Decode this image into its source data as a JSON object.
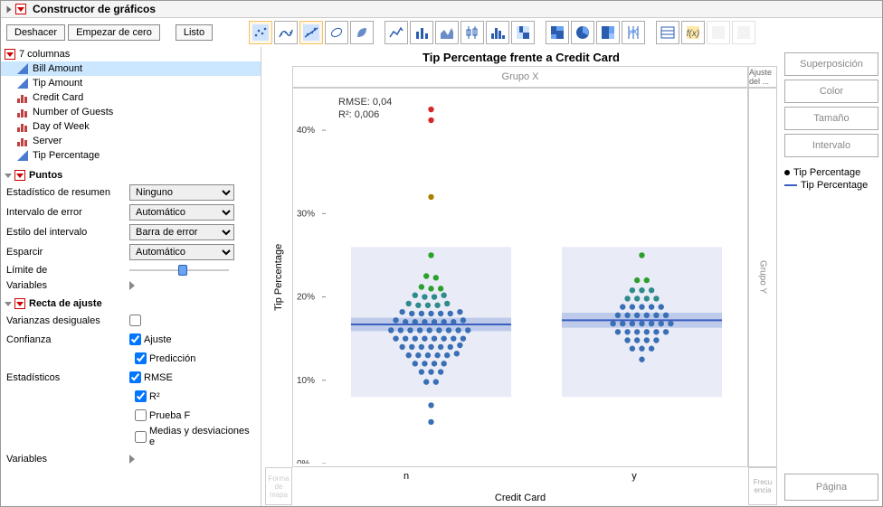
{
  "header": {
    "title": "Constructor de gráficos"
  },
  "toolbar": {
    "undo": "Deshacer",
    "redo": "Empezar de cero",
    "done": "Listo"
  },
  "columns": {
    "count_label": "7 columnas",
    "items": [
      {
        "name": "Bill Amount",
        "type": "continuous",
        "selected": true
      },
      {
        "name": "Tip Amount",
        "type": "continuous",
        "selected": false
      },
      {
        "name": "Credit Card",
        "type": "nominal",
        "selected": false
      },
      {
        "name": "Number of Guests",
        "type": "nominal",
        "selected": false
      },
      {
        "name": "Day of Week",
        "type": "nominal",
        "selected": false
      },
      {
        "name": "Server",
        "type": "nominal",
        "selected": false
      },
      {
        "name": "Tip Percentage",
        "type": "continuous",
        "selected": false
      }
    ]
  },
  "puntos": {
    "title": "Puntos",
    "summary_label": "Estadístico de resumen",
    "summary_value": "Ninguno",
    "error_interval_label": "Intervalo de error",
    "error_interval_value": "Automático",
    "interval_style_label": "Estilo del intervalo",
    "interval_style_value": "Barra de error",
    "esparcir_label": "Esparcir",
    "esparcir_value": "Automático",
    "limite_label": "Límite de",
    "variables_label": "Variables"
  },
  "recta": {
    "title": "Recta de ajuste",
    "varianzas_label": "Varianzas desiguales",
    "confianza_label": "Confianza",
    "ajuste": "Ajuste",
    "prediccion": "Predicción",
    "estadisticos_label": "Estadísticos",
    "rmse": "RMSE",
    "r2": "R²",
    "pruebaf": "Prueba F",
    "medias": "Medias y desviaciones e",
    "variables_label": "Variables",
    "checks": {
      "varianzas": false,
      "ajuste": true,
      "prediccion": true,
      "rmse": true,
      "r2": true,
      "pruebaf": false,
      "medias": false
    }
  },
  "chart": {
    "title": "Tip Percentage frente a Credit Card",
    "grupo_x": "Grupo X",
    "grupo_y": "Grupo Y",
    "ajuste_del": "Ajuste del ...",
    "frecuencia": "Frecu encia",
    "forma": "Forma de mapa",
    "y_label": "Tip Percentage",
    "x_label": "Credit Card",
    "x_cats": [
      "n",
      "y"
    ],
    "y_ticks": [
      0,
      10,
      20,
      30,
      40
    ],
    "y_tick_labels": [
      "0%",
      "10%",
      "20%",
      "30%",
      "40%"
    ],
    "y_range": [
      0,
      45
    ],
    "stats": {
      "rmse": "RMSE: 0,04",
      "r2": "R²: 0,006"
    },
    "box_color": "#e9ecf6",
    "fit_line_color": "#3b5fc0",
    "ci_band_color": "#b5c4e8",
    "n": {
      "fit_y": 16.7,
      "band_y": [
        15.9,
        17.5
      ],
      "points": [
        {
          "x": 0.5,
          "y": 42.5,
          "c": "#d62728"
        },
        {
          "x": 0.5,
          "y": 41.2,
          "c": "#d62728"
        },
        {
          "x": 0.5,
          "y": 32.0,
          "c": "#a88000"
        },
        {
          "x": 0.5,
          "y": 25.0,
          "c": "#2ca02c"
        },
        {
          "x": 0.47,
          "y": 22.5,
          "c": "#2ca02c"
        },
        {
          "x": 0.53,
          "y": 22.3,
          "c": "#2ca02c"
        },
        {
          "x": 0.44,
          "y": 21.2,
          "c": "#2ca02c"
        },
        {
          "x": 0.5,
          "y": 21.0,
          "c": "#2ca02c"
        },
        {
          "x": 0.56,
          "y": 21.0,
          "c": "#2ca02c"
        },
        {
          "x": 0.4,
          "y": 20.2,
          "c": "#2e8b8b"
        },
        {
          "x": 0.46,
          "y": 20.0,
          "c": "#2e8b8b"
        },
        {
          "x": 0.52,
          "y": 20.0,
          "c": "#2e8b8b"
        },
        {
          "x": 0.58,
          "y": 20.2,
          "c": "#2e8b8b"
        },
        {
          "x": 0.36,
          "y": 19.2,
          "c": "#2e8b8b"
        },
        {
          "x": 0.42,
          "y": 19.0,
          "c": "#2e8b8b"
        },
        {
          "x": 0.48,
          "y": 19.0,
          "c": "#2e8b8b"
        },
        {
          "x": 0.54,
          "y": 19.0,
          "c": "#2e8b8b"
        },
        {
          "x": 0.6,
          "y": 19.2,
          "c": "#2e8b8b"
        },
        {
          "x": 0.32,
          "y": 18.2,
          "c": "#3a6eb5"
        },
        {
          "x": 0.38,
          "y": 18.0,
          "c": "#3a6eb5"
        },
        {
          "x": 0.44,
          "y": 18.0,
          "c": "#3a6eb5"
        },
        {
          "x": 0.5,
          "y": 18.0,
          "c": "#3a6eb5"
        },
        {
          "x": 0.56,
          "y": 18.0,
          "c": "#3a6eb5"
        },
        {
          "x": 0.62,
          "y": 18.0,
          "c": "#3a6eb5"
        },
        {
          "x": 0.68,
          "y": 18.2,
          "c": "#3a6eb5"
        },
        {
          "x": 0.28,
          "y": 17.2,
          "c": "#3a6eb5"
        },
        {
          "x": 0.34,
          "y": 17.0,
          "c": "#3a6eb5"
        },
        {
          "x": 0.4,
          "y": 17.0,
          "c": "#3a6eb5"
        },
        {
          "x": 0.46,
          "y": 17.0,
          "c": "#3a6eb5"
        },
        {
          "x": 0.52,
          "y": 17.0,
          "c": "#3a6eb5"
        },
        {
          "x": 0.58,
          "y": 17.0,
          "c": "#3a6eb5"
        },
        {
          "x": 0.64,
          "y": 17.0,
          "c": "#3a6eb5"
        },
        {
          "x": 0.7,
          "y": 17.2,
          "c": "#3a6eb5"
        },
        {
          "x": 0.25,
          "y": 16.0,
          "c": "#3a6eb5"
        },
        {
          "x": 0.31,
          "y": 16.0,
          "c": "#3a6eb5"
        },
        {
          "x": 0.37,
          "y": 16.0,
          "c": "#3a6eb5"
        },
        {
          "x": 0.43,
          "y": 16.0,
          "c": "#3a6eb5"
        },
        {
          "x": 0.49,
          "y": 16.0,
          "c": "#3a6eb5"
        },
        {
          "x": 0.55,
          "y": 16.0,
          "c": "#3a6eb5"
        },
        {
          "x": 0.61,
          "y": 16.0,
          "c": "#3a6eb5"
        },
        {
          "x": 0.67,
          "y": 16.0,
          "c": "#3a6eb5"
        },
        {
          "x": 0.73,
          "y": 16.0,
          "c": "#3a6eb5"
        },
        {
          "x": 0.28,
          "y": 15.0,
          "c": "#3a6eb5"
        },
        {
          "x": 0.34,
          "y": 15.0,
          "c": "#3a6eb5"
        },
        {
          "x": 0.4,
          "y": 15.0,
          "c": "#3a6eb5"
        },
        {
          "x": 0.46,
          "y": 15.0,
          "c": "#3a6eb5"
        },
        {
          "x": 0.52,
          "y": 15.0,
          "c": "#3a6eb5"
        },
        {
          "x": 0.58,
          "y": 15.0,
          "c": "#3a6eb5"
        },
        {
          "x": 0.64,
          "y": 15.0,
          "c": "#3a6eb5"
        },
        {
          "x": 0.7,
          "y": 15.0,
          "c": "#3a6eb5"
        },
        {
          "x": 0.32,
          "y": 14.0,
          "c": "#3a6eb5"
        },
        {
          "x": 0.38,
          "y": 14.0,
          "c": "#3a6eb5"
        },
        {
          "x": 0.44,
          "y": 14.0,
          "c": "#3a6eb5"
        },
        {
          "x": 0.5,
          "y": 14.0,
          "c": "#3a6eb5"
        },
        {
          "x": 0.56,
          "y": 14.0,
          "c": "#3a6eb5"
        },
        {
          "x": 0.62,
          "y": 14.0,
          "c": "#3a6eb5"
        },
        {
          "x": 0.68,
          "y": 14.2,
          "c": "#3a6eb5"
        },
        {
          "x": 0.36,
          "y": 13.0,
          "c": "#3a6eb5"
        },
        {
          "x": 0.42,
          "y": 13.0,
          "c": "#3a6eb5"
        },
        {
          "x": 0.48,
          "y": 13.0,
          "c": "#3a6eb5"
        },
        {
          "x": 0.54,
          "y": 13.0,
          "c": "#3a6eb5"
        },
        {
          "x": 0.6,
          "y": 13.0,
          "c": "#3a6eb5"
        },
        {
          "x": 0.66,
          "y": 13.2,
          "c": "#3a6eb5"
        },
        {
          "x": 0.4,
          "y": 12.0,
          "c": "#3a6eb5"
        },
        {
          "x": 0.46,
          "y": 12.0,
          "c": "#3a6eb5"
        },
        {
          "x": 0.52,
          "y": 12.0,
          "c": "#3a6eb5"
        },
        {
          "x": 0.58,
          "y": 12.0,
          "c": "#3a6eb5"
        },
        {
          "x": 0.44,
          "y": 11.0,
          "c": "#3a6eb5"
        },
        {
          "x": 0.5,
          "y": 11.0,
          "c": "#3a6eb5"
        },
        {
          "x": 0.56,
          "y": 11.0,
          "c": "#3a6eb5"
        },
        {
          "x": 0.47,
          "y": 9.8,
          "c": "#3a6eb5"
        },
        {
          "x": 0.53,
          "y": 9.8,
          "c": "#3a6eb5"
        },
        {
          "x": 0.5,
          "y": 7.0,
          "c": "#3a6eb5"
        },
        {
          "x": 0.5,
          "y": 5.0,
          "c": "#3a6eb5"
        }
      ]
    },
    "y": {
      "fit_y": 17.2,
      "band_y": [
        16.3,
        18.1
      ],
      "points": [
        {
          "x": 0.5,
          "y": 25.0,
          "c": "#2ca02c"
        },
        {
          "x": 0.47,
          "y": 22.0,
          "c": "#2ca02c"
        },
        {
          "x": 0.53,
          "y": 22.0,
          "c": "#2ca02c"
        },
        {
          "x": 0.44,
          "y": 20.8,
          "c": "#2e8b8b"
        },
        {
          "x": 0.5,
          "y": 20.8,
          "c": "#2e8b8b"
        },
        {
          "x": 0.56,
          "y": 20.8,
          "c": "#2e8b8b"
        },
        {
          "x": 0.41,
          "y": 19.8,
          "c": "#2e8b8b"
        },
        {
          "x": 0.47,
          "y": 19.8,
          "c": "#2e8b8b"
        },
        {
          "x": 0.53,
          "y": 19.8,
          "c": "#2e8b8b"
        },
        {
          "x": 0.59,
          "y": 19.8,
          "c": "#2e8b8b"
        },
        {
          "x": 0.38,
          "y": 18.8,
          "c": "#3a6eb5"
        },
        {
          "x": 0.44,
          "y": 18.8,
          "c": "#3a6eb5"
        },
        {
          "x": 0.5,
          "y": 18.8,
          "c": "#3a6eb5"
        },
        {
          "x": 0.56,
          "y": 18.8,
          "c": "#3a6eb5"
        },
        {
          "x": 0.62,
          "y": 18.8,
          "c": "#3a6eb5"
        },
        {
          "x": 0.35,
          "y": 17.8,
          "c": "#3a6eb5"
        },
        {
          "x": 0.41,
          "y": 17.8,
          "c": "#3a6eb5"
        },
        {
          "x": 0.47,
          "y": 17.8,
          "c": "#3a6eb5"
        },
        {
          "x": 0.53,
          "y": 17.8,
          "c": "#3a6eb5"
        },
        {
          "x": 0.59,
          "y": 17.8,
          "c": "#3a6eb5"
        },
        {
          "x": 0.65,
          "y": 17.8,
          "c": "#3a6eb5"
        },
        {
          "x": 0.32,
          "y": 16.8,
          "c": "#3a6eb5"
        },
        {
          "x": 0.38,
          "y": 16.8,
          "c": "#3a6eb5"
        },
        {
          "x": 0.44,
          "y": 16.8,
          "c": "#3a6eb5"
        },
        {
          "x": 0.5,
          "y": 16.8,
          "c": "#3a6eb5"
        },
        {
          "x": 0.56,
          "y": 16.8,
          "c": "#3a6eb5"
        },
        {
          "x": 0.62,
          "y": 16.8,
          "c": "#3a6eb5"
        },
        {
          "x": 0.68,
          "y": 16.8,
          "c": "#3a6eb5"
        },
        {
          "x": 0.35,
          "y": 15.8,
          "c": "#3a6eb5"
        },
        {
          "x": 0.41,
          "y": 15.8,
          "c": "#3a6eb5"
        },
        {
          "x": 0.47,
          "y": 15.8,
          "c": "#3a6eb5"
        },
        {
          "x": 0.53,
          "y": 15.8,
          "c": "#3a6eb5"
        },
        {
          "x": 0.59,
          "y": 15.8,
          "c": "#3a6eb5"
        },
        {
          "x": 0.65,
          "y": 15.8,
          "c": "#3a6eb5"
        },
        {
          "x": 0.41,
          "y": 14.8,
          "c": "#3a6eb5"
        },
        {
          "x": 0.47,
          "y": 14.8,
          "c": "#3a6eb5"
        },
        {
          "x": 0.53,
          "y": 14.8,
          "c": "#3a6eb5"
        },
        {
          "x": 0.59,
          "y": 14.8,
          "c": "#3a6eb5"
        },
        {
          "x": 0.44,
          "y": 13.8,
          "c": "#3a6eb5"
        },
        {
          "x": 0.5,
          "y": 13.8,
          "c": "#3a6eb5"
        },
        {
          "x": 0.56,
          "y": 13.8,
          "c": "#3a6eb5"
        },
        {
          "x": 0.5,
          "y": 12.5,
          "c": "#3a6eb5"
        }
      ]
    }
  },
  "right_panel": {
    "superpos": "Superposición",
    "color": "Color",
    "tamano": "Tamaño",
    "intervalo": "Intervalo",
    "pagina": "Página",
    "legend": [
      {
        "type": "dot",
        "label": "Tip Percentage"
      },
      {
        "type": "line",
        "label": "Tip Percentage"
      }
    ]
  },
  "colors": {
    "continuous_icon": "#4a7bd0",
    "nominal_icon": "#c04040"
  }
}
